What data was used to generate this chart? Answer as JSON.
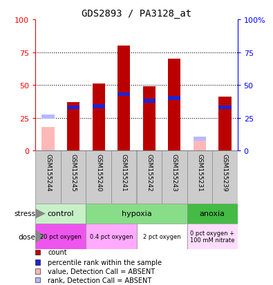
{
  "title": "GDS2893 / PA3128_at",
  "samples": [
    "GSM155244",
    "GSM155245",
    "GSM155240",
    "GSM155241",
    "GSM155242",
    "GSM155243",
    "GSM155231",
    "GSM155239"
  ],
  "count_values": [
    0,
    37,
    51,
    80,
    49,
    70,
    0,
    41
  ],
  "rank_values": [
    0,
    33,
    34,
    43,
    38,
    40,
    0,
    33
  ],
  "absent_count": [
    18,
    0,
    0,
    0,
    0,
    0,
    8,
    0
  ],
  "absent_rank": [
    26,
    0,
    0,
    0,
    0,
    0,
    9,
    0
  ],
  "count_color": "#bb0000",
  "rank_color": "#2222cc",
  "absent_count_color": "#ffb8b8",
  "absent_rank_color": "#b8b8ff",
  "ylim": [
    0,
    100
  ],
  "grid_ticks": [
    25,
    50,
    75
  ],
  "stress_groups": [
    {
      "label": "control",
      "start": 0,
      "end": 2,
      "color": "#c8f0c8"
    },
    {
      "label": "hypoxia",
      "start": 2,
      "end": 6,
      "color": "#88dd88"
    },
    {
      "label": "anoxia",
      "start": 6,
      "end": 8,
      "color": "#44bb44"
    }
  ],
  "dose_groups": [
    {
      "label": "20 pct oxygen",
      "start": 0,
      "end": 2,
      "color": "#ee55ee"
    },
    {
      "label": "0.4 pct oxygen",
      "start": 2,
      "end": 4,
      "color": "#ffaaff"
    },
    {
      "label": "2 pct oxygen",
      "start": 4,
      "end": 6,
      "color": "#ffffff"
    },
    {
      "label": "0 pct oxygen +\n100 mM nitrate",
      "start": 6,
      "end": 8,
      "color": "#ffddff"
    }
  ],
  "legend_items": [
    {
      "label": "count",
      "color": "#bb0000"
    },
    {
      "label": "percentile rank within the sample",
      "color": "#2222cc"
    },
    {
      "label": "value, Detection Call = ABSENT",
      "color": "#ffb8b8"
    },
    {
      "label": "rank, Detection Call = ABSENT",
      "color": "#b8b8ff"
    }
  ],
  "bar_width": 0.5,
  "rank_bar_width": 0.5,
  "rank_bar_height": 3,
  "stress_label": "stress",
  "dose_label": "dose",
  "sample_bg_color": "#cccccc",
  "sample_border_color": "#888888"
}
